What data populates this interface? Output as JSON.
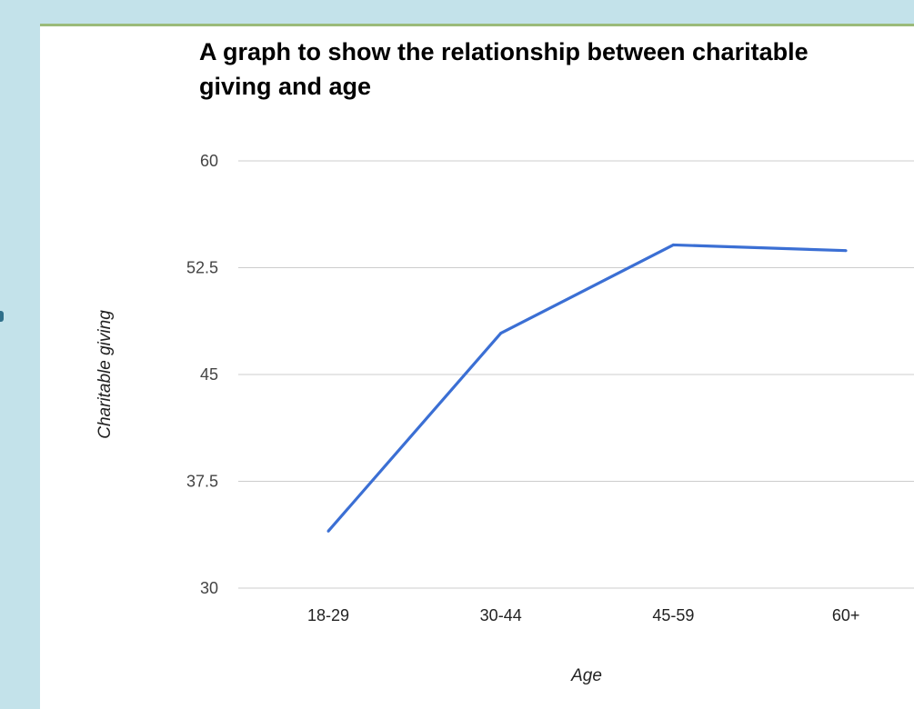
{
  "colors": {
    "background": "#c3e2ea",
    "panel": "#ffffff",
    "panel_top_border": "#9bbb7a",
    "line": "#3b6fd4",
    "gridline": "#cccccc"
  },
  "chart_data": {
    "type": "line",
    "title": "A graph to show the relationship between charitable giving and age",
    "xlabel": "Age",
    "ylabel": "Charitable giving",
    "categories": [
      "18-29",
      "30-44",
      "45-59",
      "60+"
    ],
    "series": [
      {
        "values": [
          34,
          47.9,
          54.1,
          53.7
        ]
      }
    ],
    "ylim": [
      30,
      60
    ],
    "yticks": [
      "30",
      "37.5",
      "45",
      "52.5",
      "60"
    ],
    "grid": true,
    "legend": "none"
  }
}
